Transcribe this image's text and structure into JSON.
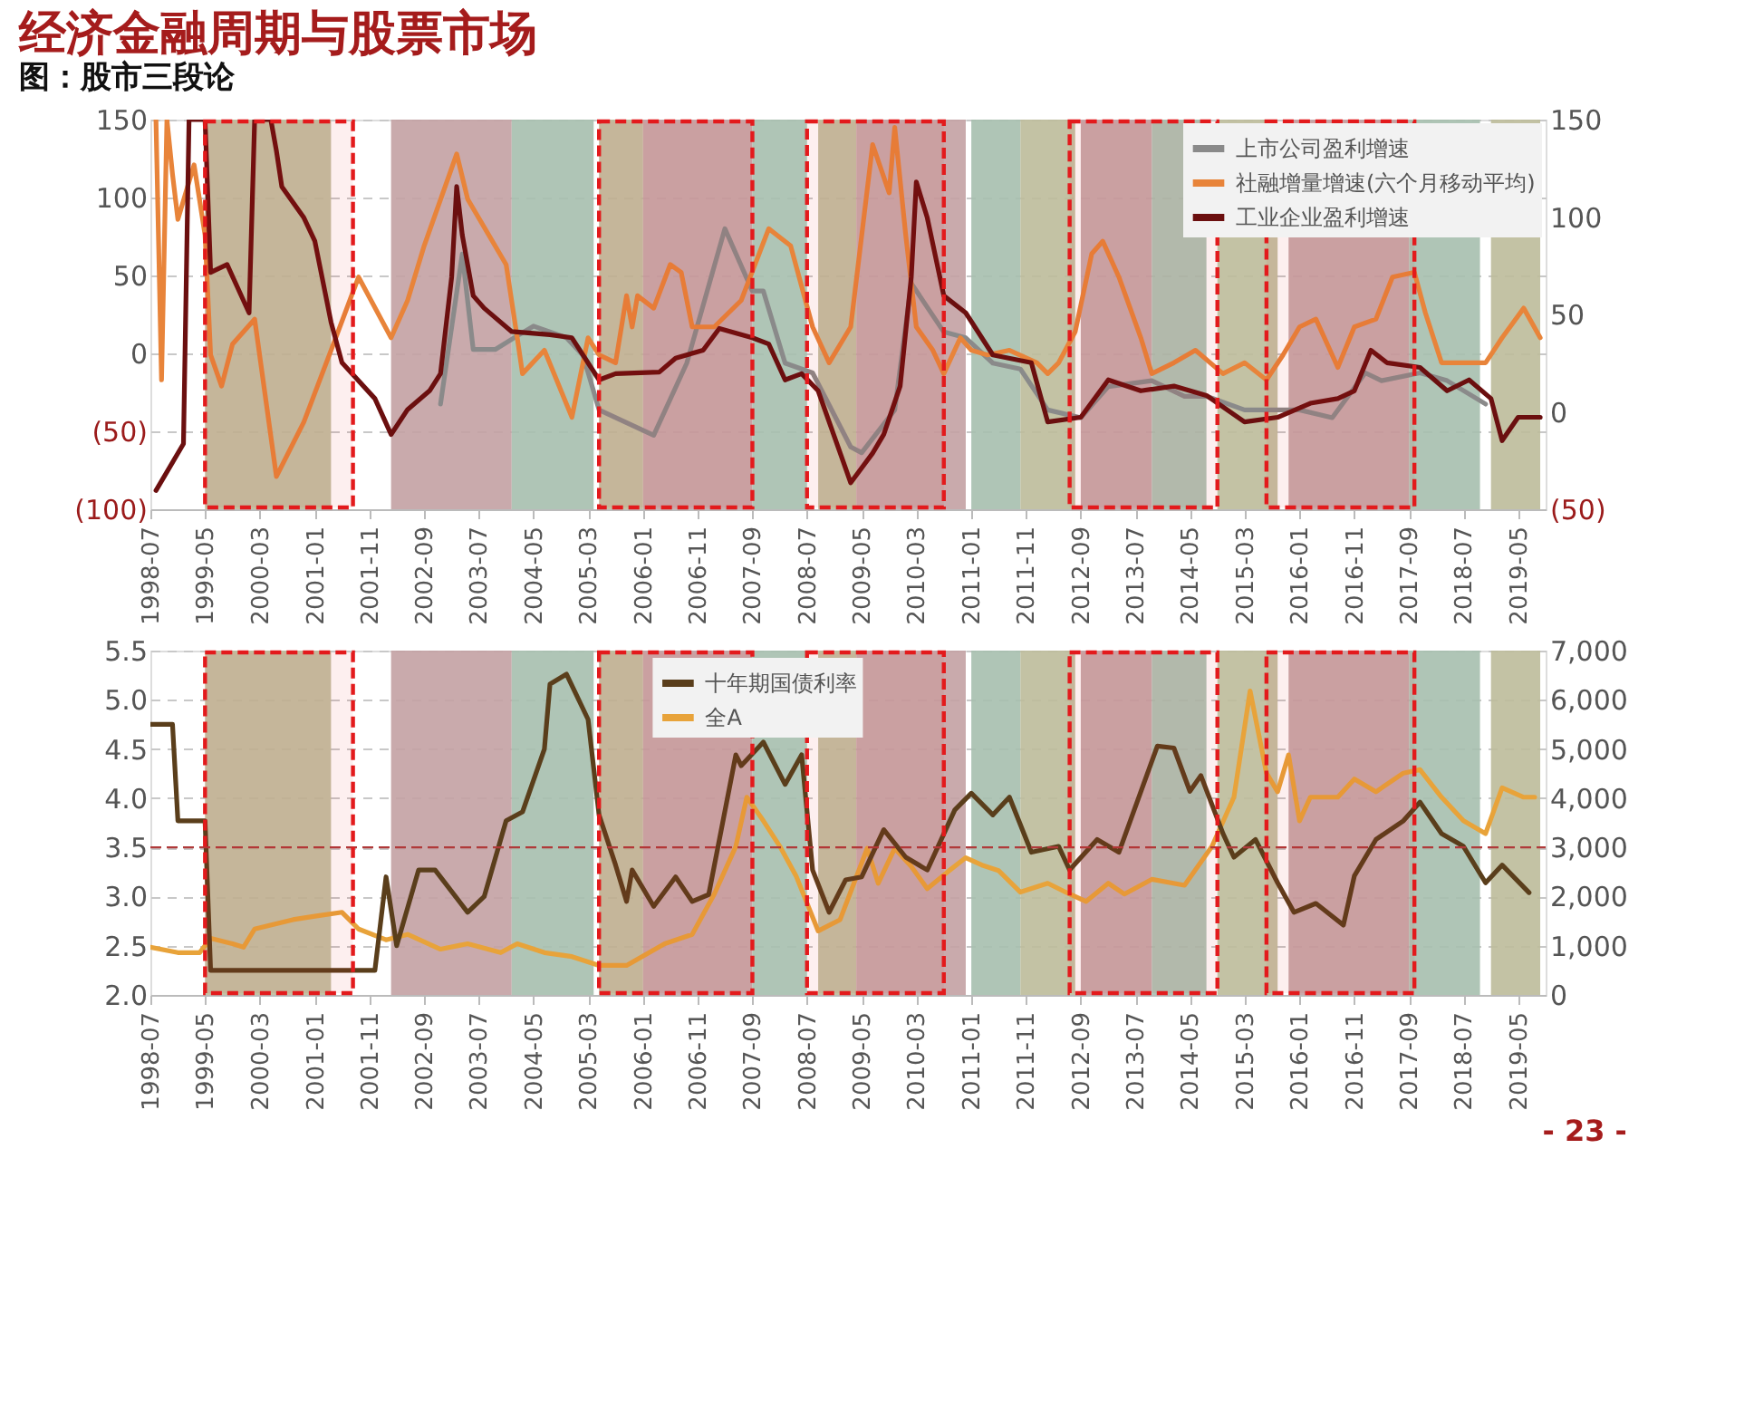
{
  "chart_data": [
    {
      "type": "line",
      "title": "经济金融周期与股票市场",
      "subtitle": "图：股市三段论",
      "xlim": [
        "1998-07",
        "2019-10"
      ],
      "xticks": [
        "1998-07",
        "1999-05",
        "2000-03",
        "2001-01",
        "2001-11",
        "2002-09",
        "2003-07",
        "2004-05",
        "2005-03",
        "2006-01",
        "2006-11",
        "2007-09",
        "2008-07",
        "2009-05",
        "2010-03",
        "2011-01",
        "2011-11",
        "2012-09",
        "2013-07",
        "2014-05",
        "2015-03",
        "2016-01",
        "2016-11",
        "2017-09",
        "2018-07",
        "2019-05"
      ],
      "ylim": [
        -100,
        150
      ],
      "yticks": [
        {
          "value": -100,
          "label": "(100)"
        },
        {
          "value": -50,
          "label": "(50)"
        },
        0,
        50,
        100,
        150
      ],
      "y2lim": [
        -50,
        150
      ],
      "y2ticks": [
        {
          "value": -50,
          "label": "(50)"
        },
        0,
        50,
        100,
        150
      ],
      "grid": "y",
      "legend": "top right",
      "series": [
        {
          "name": "上市公司盈利增速",
          "color": "#8a8a8a",
          "axis": "y2",
          "x": [
            "2002-12",
            "2003-04",
            "2003-06",
            "2003-10",
            "2004-02",
            "2004-05",
            "2004-11",
            "2005-02",
            "2005-05",
            "2006-03",
            "2006-09",
            "2007-04",
            "2007-09",
            "2007-11",
            "2008-03",
            "2008-08",
            "2009-03",
            "2009-05",
            "2009-11",
            "2010-02",
            "2010-08",
            "2010-12",
            "2011-05",
            "2011-10",
            "2012-03",
            "2012-09",
            "2013-02",
            "2013-10",
            "2014-04",
            "2014-08",
            "2015-03",
            "2016-01",
            "2016-07",
            "2017-01",
            "2017-04",
            "2017-11",
            "2018-04",
            "2018-11"
          ],
          "values": [
            4,
            81,
            32,
            32,
            39,
            44,
            38,
            29,
            1,
            -12,
            25,
            94,
            62,
            62,
            25,
            20,
            -18,
            -21,
            1,
            66,
            41,
            38,
            25,
            22,
            1,
            -3,
            13,
            16,
            8,
            8,
            1,
            1,
            -3,
            20,
            16,
            20,
            16,
            4
          ]
        },
        {
          "name": "社融增量增速(六个月移动平均)",
          "color": "#e8843a",
          "axis": "y",
          "x": [
            "1998-08",
            "1998-09",
            "1998-10",
            "1998-11",
            "1998-12",
            "1999-03",
            "1999-05",
            "1999-06",
            "1999-08",
            "1999-10",
            "2000-02",
            "2000-06",
            "2000-11",
            "2001-04",
            "2001-09",
            "2002-03",
            "2002-06",
            "2002-09",
            "2003-03",
            "2003-05",
            "2003-12",
            "2004-02",
            "2004-03",
            "2004-07",
            "2004-12",
            "2005-03",
            "2005-05",
            "2005-08",
            "2005-10",
            "2005-11",
            "2005-12",
            "2006-03",
            "2006-06",
            "2006-08",
            "2006-10",
            "2007-02",
            "2007-07",
            "2007-12",
            "2008-04",
            "2008-08",
            "2008-11",
            "2009-03",
            "2009-07",
            "2009-10",
            "2009-11",
            "2010-01",
            "2010-03",
            "2010-06",
            "2010-08",
            "2010-11",
            "2011-01",
            "2011-04",
            "2011-08",
            "2012-01",
            "2012-03",
            "2012-05",
            "2012-08",
            "2012-11",
            "2013-01",
            "2013-04",
            "2013-08",
            "2013-10",
            "2014-02",
            "2014-06",
            "2014-11",
            "2015-03",
            "2015-07",
            "2015-10",
            "2016-01",
            "2016-04",
            "2016-08",
            "2016-11",
            "2017-03",
            "2017-06",
            "2017-10",
            "2017-12",
            "2018-03",
            "2018-07",
            "2018-11",
            "2019-02",
            "2019-06",
            "2019-09"
          ],
          "values": [
            150,
            -17,
            150,
            115,
            86,
            121,
            76,
            -1,
            -21,
            6,
            22,
            -79,
            -44,
            2,
            49,
            10,
            34,
            69,
            128,
            99,
            57,
            10,
            -13,
            2,
            -41,
            10,
            -1,
            -6,
            37,
            17,
            37,
            29,
            57,
            52,
            17,
            17,
            34,
            80,
            69,
            17,
            -6,
            17,
            134,
            103,
            145,
            76,
            17,
            2,
            -13,
            10,
            2,
            -1,
            2,
            -6,
            -13,
            -6,
            14,
            64,
            72,
            49,
            10,
            -13,
            -6,
            2,
            -13,
            -6,
            -17,
            -1,
            17,
            22,
            -9,
            17,
            22,
            49,
            52,
            26,
            -6,
            -6,
            -6,
            10,
            29,
            10
          ]
        },
        {
          "name": "工业企业盈利增速",
          "color": "#6b0f0f",
          "axis": "y",
          "x": [
            "1998-08",
            "1999-01",
            "1999-02",
            "1999-05",
            "1999-06",
            "1999-09",
            "2000-01",
            "2000-02",
            "2000-05",
            "2000-06",
            "2000-07",
            "2000-11",
            "2001-01",
            "2001-04",
            "2001-06",
            "2001-12",
            "2002-03",
            "2002-06",
            "2002-10",
            "2002-12",
            "2003-02",
            "2003-03",
            "2003-04",
            "2003-06",
            "2003-08",
            "2004-01",
            "2004-08",
            "2004-12",
            "2005-05",
            "2005-08",
            "2006-04",
            "2006-07",
            "2006-12",
            "2007-03",
            "2007-09",
            "2007-12",
            "2008-03",
            "2008-06",
            "2008-09",
            "2009-03",
            "2009-07",
            "2009-09",
            "2009-12",
            "2010-02",
            "2010-03",
            "2010-05",
            "2010-08",
            "2010-12",
            "2011-05",
            "2011-12",
            "2012-03",
            "2012-09",
            "2013-02",
            "2013-08",
            "2014-02",
            "2014-08",
            "2015-03",
            "2015-09",
            "2016-03",
            "2016-08",
            "2016-11",
            "2017-02",
            "2017-05",
            "2017-11",
            "2018-04",
            "2018-08",
            "2018-12",
            "2019-02",
            "2019-05",
            "2019-09"
          ],
          "values": [
            -88,
            -58,
            150,
            150,
            52,
            57,
            26,
            150,
            150,
            130,
            107,
            87,
            72,
            20,
            -6,
            -29,
            -52,
            -36,
            -24,
            -13,
            49,
            107,
            76,
            37,
            29,
            14,
            12,
            10,
            -17,
            -13,
            -12,
            -3,
            2,
            16,
            10,
            6,
            -17,
            -13,
            -24,
            -83,
            -64,
            -52,
            -21,
            49,
            110,
            87,
            37,
            26,
            -1,
            -6,
            -44,
            -41,
            -17,
            -24,
            -21,
            -27,
            -44,
            -41,
            -32,
            -29,
            -24,
            2,
            -6,
            -9,
            -24,
            -17,
            -29,
            -56,
            -41,
            -41
          ]
        }
      ],
      "bands": [
        {
          "axis": "x",
          "from": "1999-05",
          "to": "2001-04",
          "color": "#bcbb9a"
        },
        {
          "axis": "x",
          "from": "2002-03",
          "to": "2004-01",
          "color": "#c3a1a3"
        },
        {
          "axis": "x",
          "from": "2004-01",
          "to": "2005-04",
          "color": "#a6bfae"
        },
        {
          "axis": "x",
          "from": "2005-05",
          "to": "2006-01",
          "color": "#bcbb9a"
        },
        {
          "axis": "x",
          "from": "2006-01",
          "to": "2007-09",
          "color": "#c3a1a3"
        },
        {
          "axis": "x",
          "from": "2007-09",
          "to": "2008-07",
          "color": "#a6bfae"
        },
        {
          "axis": "x",
          "from": "2008-09",
          "to": "2009-04",
          "color": "#bcbb9a"
        },
        {
          "axis": "x",
          "from": "2009-04",
          "to": "2010-12",
          "color": "#c3a1a3"
        },
        {
          "axis": "x",
          "from": "2011-01",
          "to": "2011-10",
          "color": "#a6bfae"
        },
        {
          "axis": "x",
          "from": "2011-10",
          "to": "2012-08",
          "color": "#bcbb9a"
        },
        {
          "axis": "x",
          "from": "2012-09",
          "to": "2013-10",
          "color": "#c3a1a3"
        },
        {
          "axis": "x",
          "from": "2013-10",
          "to": "2014-08",
          "color": "#a6bfae"
        },
        {
          "axis": "x",
          "from": "2014-10",
          "to": "2015-09",
          "color": "#bcbb9a"
        },
        {
          "axis": "x",
          "from": "2015-11",
          "to": "2017-09",
          "color": "#c3a1a3"
        },
        {
          "axis": "x",
          "from": "2017-09",
          "to": "2018-10",
          "color": "#a6bfae"
        },
        {
          "axis": "x",
          "from": "2018-12",
          "to": "2019-09",
          "color": "#bcbb9a"
        },
        {
          "axis": "x",
          "from": "1999-05",
          "to": "2001-08",
          "color": "#e31a1c"
        },
        {
          "axis": "x",
          "from": "2005-05",
          "to": "2007-09",
          "color": "#e31a1c"
        },
        {
          "axis": "x",
          "from": "2008-07",
          "to": "2010-08",
          "color": "#e31a1c"
        },
        {
          "axis": "x",
          "from": "2012-07",
          "to": "2014-10",
          "color": "#e31a1c"
        },
        {
          "axis": "x",
          "from": "2015-07",
          "to": "2017-10",
          "color": "#e31a1c"
        }
      ]
    },
    {
      "type": "line",
      "annotations": [
        "- 23 -"
      ],
      "xlim": [
        "1998-07",
        "2019-10"
      ],
      "xticks": [
        "1998-07",
        "1999-05",
        "2000-03",
        "2001-01",
        "2001-11",
        "2002-09",
        "2003-07",
        "2004-05",
        "2005-03",
        "2006-01",
        "2006-11",
        "2007-09",
        "2008-07",
        "2009-05",
        "2010-03",
        "2011-01",
        "2011-11",
        "2012-09",
        "2013-07",
        "2014-05",
        "2015-03",
        "2016-01",
        "2016-11",
        "2017-09",
        "2018-07",
        "2019-05"
      ],
      "ylim": [
        2,
        5.5
      ],
      "yticks": [
        {
          "value": 2,
          "label": "2.0"
        },
        2.5,
        {
          "value": 3,
          "label": "3.0"
        },
        3.5,
        {
          "value": 4,
          "label": "4.0"
        },
        4.5,
        {
          "value": 5,
          "label": "5.0"
        },
        5.5
      ],
      "y2lim": [
        0,
        7000
      ],
      "y2ticks": [
        0,
        {
          "value": 1000,
          "label": "1,000"
        },
        {
          "value": 2000,
          "label": "2,000"
        },
        {
          "value": 3000,
          "label": "3,000"
        },
        {
          "value": 4000,
          "label": "4,000"
        },
        {
          "value": 5000,
          "label": "5,000"
        },
        {
          "value": 6000,
          "label": "6,000"
        },
        {
          "value": 7000,
          "label": "7,000"
        }
      ],
      "grid": "y",
      "legend": "top",
      "ref_lines": [
        {
          "axis": "y",
          "value": 3.5,
          "color": "#b03a3a",
          "line_style": "dashed"
        }
      ],
      "series": [
        {
          "name": "十年期国债利率",
          "color": "#5a3e1b",
          "axis": "y",
          "x": [
            "1998-07",
            "1998-11",
            "1998-12",
            "1999-05",
            "1999-06",
            "2001-12",
            "2002-02",
            "2002-04",
            "2002-08",
            "2002-11",
            "2003-05",
            "2003-08",
            "2003-12",
            "2004-03",
            "2004-07",
            "2004-08",
            "2004-11",
            "2005-03",
            "2005-05",
            "2005-08",
            "2005-10",
            "2005-11",
            "2006-03",
            "2006-07",
            "2006-10",
            "2007-01",
            "2007-06",
            "2007-07",
            "2007-11",
            "2008-03",
            "2008-06",
            "2008-08",
            "2008-11",
            "2009-02",
            "2009-05",
            "2009-09",
            "2010-01",
            "2010-05",
            "2010-10",
            "2011-01",
            "2011-05",
            "2011-08",
            "2011-12",
            "2012-05",
            "2012-07",
            "2012-12",
            "2013-04",
            "2013-11",
            "2014-02",
            "2014-05",
            "2014-07",
            "2014-11",
            "2015-01",
            "2015-05",
            "2015-09",
            "2015-12",
            "2016-04",
            "2016-09",
            "2016-11",
            "2017-03",
            "2017-08",
            "2017-11",
            "2018-03",
            "2018-07",
            "2018-11",
            "2019-02",
            "2019-07"
          ],
          "values": [
            4.75,
            4.75,
            3.77,
            3.77,
            2.25,
            2.25,
            3.2,
            2.5,
            3.27,
            3.27,
            2.84,
            3.0,
            3.77,
            3.86,
            4.5,
            5.16,
            5.26,
            4.8,
            3.83,
            3.32,
            2.95,
            3.27,
            2.9,
            3.2,
            2.95,
            3.02,
            4.44,
            4.33,
            4.57,
            4.14,
            4.44,
            3.27,
            2.84,
            3.17,
            3.2,
            3.68,
            3.4,
            3.27,
            3.88,
            4.05,
            3.83,
            4.01,
            3.45,
            3.51,
            3.27,
            3.58,
            3.45,
            4.53,
            4.51,
            4.07,
            4.23,
            3.64,
            3.4,
            3.58,
            3.14,
            2.84,
            2.93,
            2.71,
            3.21,
            3.58,
            3.77,
            3.96,
            3.64,
            3.51,
            3.14,
            3.32,
            3.04
          ]
        },
        {
          "name": "全A",
          "color": "#e8a33a",
          "axis": "y2",
          "x": [
            "1998-07",
            "1998-12",
            "1999-04",
            "1999-06",
            "1999-10",
            "1999-12",
            "2000-02",
            "2000-09",
            "2001-01",
            "2001-06",
            "2001-09",
            "2002-02",
            "2002-06",
            "2002-12",
            "2003-05",
            "2003-11",
            "2004-02",
            "2004-07",
            "2004-12",
            "2005-05",
            "2005-10",
            "2006-05",
            "2006-10",
            "2007-02",
            "2007-06",
            "2007-08",
            "2007-11",
            "2008-02",
            "2008-05",
            "2008-09",
            "2009-01",
            "2009-06",
            "2009-08",
            "2009-11",
            "2010-02",
            "2010-05",
            "2010-09",
            "2010-12",
            "2011-03",
            "2011-06",
            "2011-10",
            "2012-03",
            "2012-07",
            "2012-10",
            "2013-02",
            "2013-05",
            "2013-10",
            "2014-04",
            "2014-09",
            "2015-01",
            "2015-04",
            "2015-07",
            "2015-09",
            "2015-11",
            "2016-01",
            "2016-03",
            "2016-08",
            "2016-11",
            "2017-03",
            "2017-08",
            "2017-11",
            "2018-03",
            "2018-07",
            "2018-11",
            "2019-02",
            "2019-06",
            "2019-08"
          ],
          "values": [
            970,
            860,
            860,
            1150,
            1040,
            970,
            1340,
            1530,
            1600,
            1680,
            1340,
            1120,
            1230,
            930,
            1040,
            860,
            1040,
            860,
            780,
            600,
            600,
            1040,
            1230,
            2050,
            3020,
            4020,
            3540,
            3020,
            2420,
            1300,
            1530,
            2980,
            2270,
            2980,
            2610,
            2160,
            2530,
            2790,
            2640,
            2530,
            2090,
            2270,
            2050,
            1900,
            2270,
            2050,
            2350,
            2230,
            3020,
            4020,
            6180,
            4510,
            4130,
            4880,
            3540,
            4020,
            4020,
            4390,
            4130,
            4510,
            4580,
            4020,
            3540,
            3280,
            4210,
            4020,
            4020
          ]
        }
      ],
      "bands": [
        {
          "axis": "x",
          "from": "1999-05",
          "to": "2001-04",
          "color": "#bcbb9a"
        },
        {
          "axis": "x",
          "from": "2002-03",
          "to": "2004-01",
          "color": "#c3a1a3"
        },
        {
          "axis": "x",
          "from": "2004-01",
          "to": "2005-04",
          "color": "#a6bfae"
        },
        {
          "axis": "x",
          "from": "2005-05",
          "to": "2006-01",
          "color": "#bcbb9a"
        },
        {
          "axis": "x",
          "from": "2006-01",
          "to": "2007-09",
          "color": "#c3a1a3"
        },
        {
          "axis": "x",
          "from": "2007-09",
          "to": "2008-07",
          "color": "#a6bfae"
        },
        {
          "axis": "x",
          "from": "2008-09",
          "to": "2009-04",
          "color": "#bcbb9a"
        },
        {
          "axis": "x",
          "from": "2009-04",
          "to": "2010-12",
          "color": "#c3a1a3"
        },
        {
          "axis": "x",
          "from": "2011-01",
          "to": "2011-10",
          "color": "#a6bfae"
        },
        {
          "axis": "x",
          "from": "2011-10",
          "to": "2012-08",
          "color": "#bcbb9a"
        },
        {
          "axis": "x",
          "from": "2012-09",
          "to": "2013-10",
          "color": "#c3a1a3"
        },
        {
          "axis": "x",
          "from": "2013-10",
          "to": "2014-08",
          "color": "#a6bfae"
        },
        {
          "axis": "x",
          "from": "2014-10",
          "to": "2015-09",
          "color": "#bcbb9a"
        },
        {
          "axis": "x",
          "from": "2015-11",
          "to": "2017-09",
          "color": "#c3a1a3"
        },
        {
          "axis": "x",
          "from": "2017-09",
          "to": "2018-10",
          "color": "#a6bfae"
        },
        {
          "axis": "x",
          "from": "2018-12",
          "to": "2019-09",
          "color": "#bcbb9a"
        },
        {
          "axis": "x",
          "from": "1999-05",
          "to": "2001-08",
          "color": "#e31a1c"
        },
        {
          "axis": "x",
          "from": "2005-05",
          "to": "2007-09",
          "color": "#e31a1c"
        },
        {
          "axis": "x",
          "from": "2008-07",
          "to": "2010-08",
          "color": "#e31a1c"
        },
        {
          "axis": "x",
          "from": "2012-07",
          "to": "2014-10",
          "color": "#e31a1c"
        },
        {
          "axis": "x",
          "from": "2015-07",
          "to": "2017-10",
          "color": "#e31a1c"
        }
      ]
    }
  ]
}
